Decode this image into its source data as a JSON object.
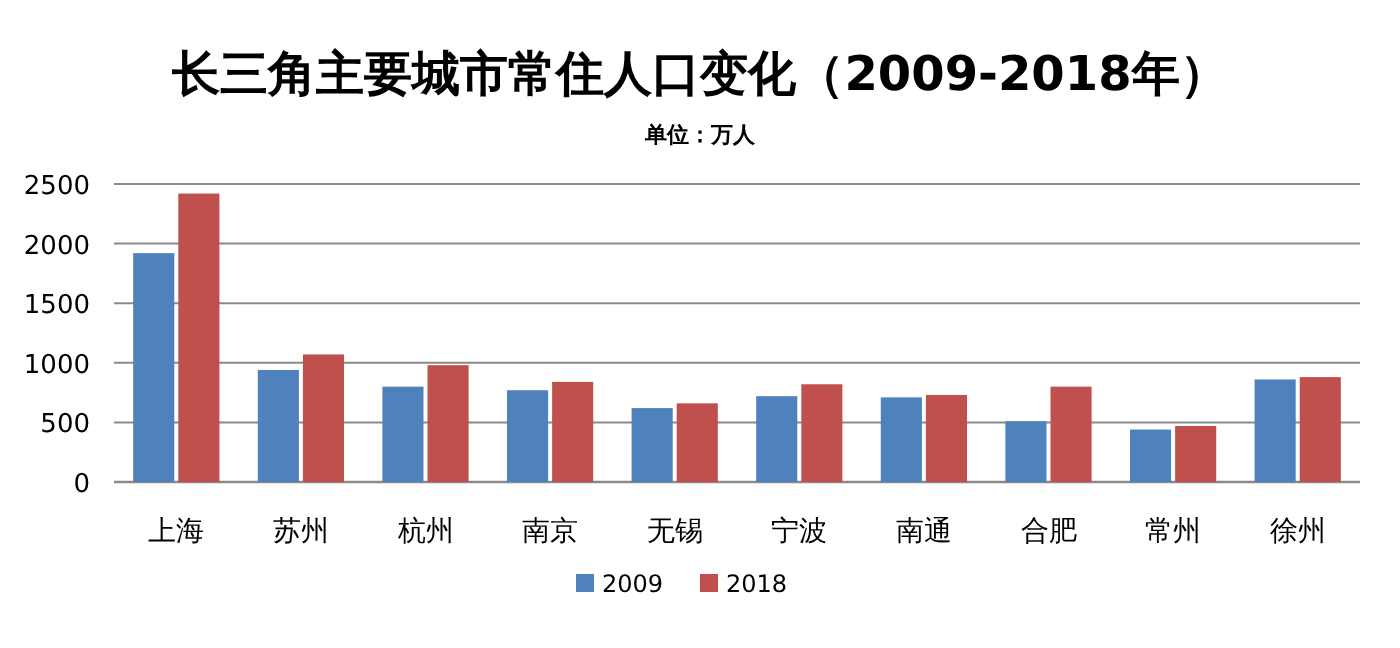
{
  "chart_data": {
    "type": "bar",
    "title": "长三角主要城市常住人口变化（2009-2018年）",
    "subtitle": "单位：万人",
    "categories": [
      "上海",
      "苏州",
      "杭州",
      "南京",
      "无锡",
      "宁波",
      "南通",
      "合肥",
      "常州",
      "徐州"
    ],
    "series": [
      {
        "name": "2009",
        "color": "#4f81bd",
        "values": [
          1920,
          940,
          800,
          770,
          620,
          720,
          710,
          510,
          440,
          860
        ]
      },
      {
        "name": "2018",
        "color": "#c0504d",
        "values": [
          2420,
          1070,
          980,
          840,
          660,
          820,
          730,
          800,
          470,
          880
        ]
      }
    ],
    "ylim": [
      0,
      2500
    ],
    "yticks": [
      0,
      500,
      1000,
      1500,
      2000,
      2500
    ],
    "grid": "y",
    "legend": "bottom"
  }
}
